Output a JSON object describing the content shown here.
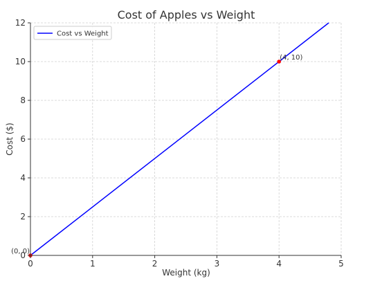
{
  "chart_data": {
    "type": "line",
    "title": "Cost of Apples vs Weight",
    "xlabel": "Weight (kg)",
    "ylabel": "Cost ($)",
    "xlim": [
      0,
      5
    ],
    "ylim": [
      0,
      12
    ],
    "xticks": [
      "0",
      "1",
      "2",
      "3",
      "4",
      "5"
    ],
    "yticks": [
      "0",
      "2",
      "4",
      "6",
      "8",
      "10",
      "12"
    ],
    "grid": true,
    "legend_position": "top-left",
    "series": [
      {
        "name": "Cost vs Weight",
        "color": "#0000ff",
        "x": [
          0,
          4.8
        ],
        "y": [
          0,
          12
        ]
      }
    ],
    "points": [
      {
        "x": 0,
        "y": 0,
        "label": "(0, 0)",
        "color": "#ff0000"
      },
      {
        "x": 4,
        "y": 10,
        "label": "(4, 10)",
        "color": "#ff0000"
      }
    ]
  }
}
